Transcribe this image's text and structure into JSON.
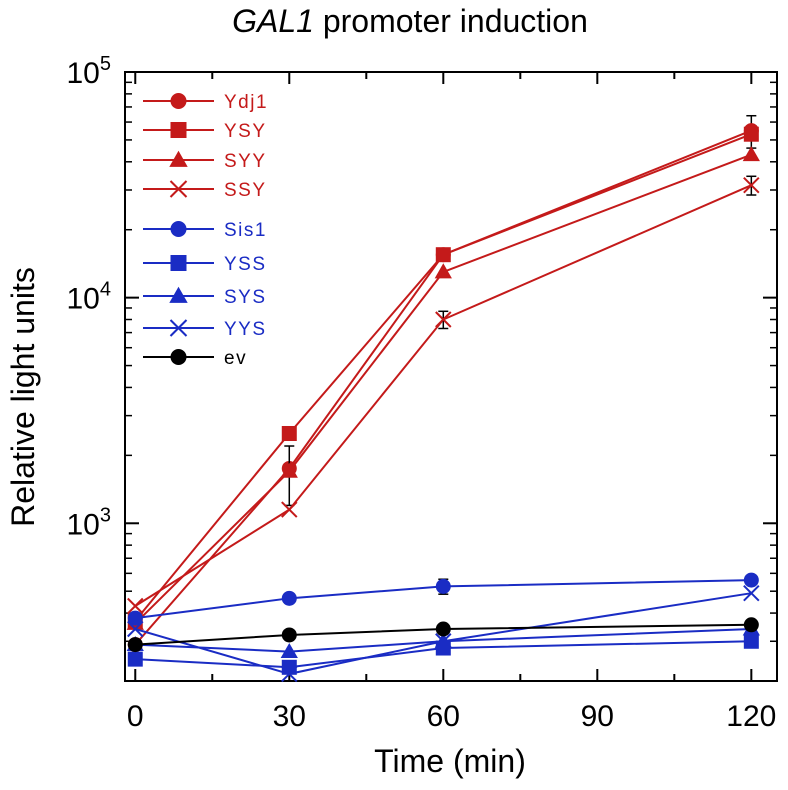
{
  "chart_data": {
    "type": "line",
    "title_italic": "GAL1",
    "title_rest": " promoter induction",
    "xlabel": "Time (min)",
    "ylabel": "Relative light units",
    "x": [
      0,
      30,
      60,
      120
    ],
    "xlim": [
      -2,
      125
    ],
    "xticks": [
      0,
      30,
      60,
      90,
      120
    ],
    "xtick_labels": [
      "0",
      "30",
      "60",
      "90",
      "120"
    ],
    "yscale": "log",
    "ylim": [
      200,
      100000
    ],
    "ytick_labels": [
      {
        "value": 1000,
        "base": "10",
        "exp": "3"
      },
      {
        "value": 10000,
        "base": "10",
        "exp": "4"
      },
      {
        "value": 100000,
        "base": "10",
        "exp": "5"
      }
    ],
    "grid": false,
    "legend_position": "top-left",
    "series": [
      {
        "name": "Ydj1",
        "color": "#c41a1a",
        "marker": "circle",
        "values": [
          290,
          1750,
          15500,
          55000
        ],
        "err": [
          0,
          0,
          0,
          9000
        ]
      },
      {
        "name": "YSY",
        "color": "#c41a1a",
        "marker": "square",
        "values": [
          370,
          2500,
          15500,
          53000
        ],
        "err": [
          0,
          0,
          0,
          0
        ]
      },
      {
        "name": "SYY",
        "color": "#c41a1a",
        "marker": "triangle",
        "values": [
          360,
          1700,
          13000,
          43000
        ],
        "err": [
          0,
          500,
          0,
          0
        ]
      },
      {
        "name": "SSY",
        "color": "#c41a1a",
        "marker": "x",
        "values": [
          430,
          1150,
          8000,
          31500
        ],
        "err": [
          0,
          0,
          700,
          3000
        ]
      },
      {
        "name": "Sis1",
        "color": "#1a2cc4",
        "marker": "circle",
        "values": [
          380,
          465,
          525,
          560
        ],
        "err": [
          0,
          0,
          40,
          0
        ]
      },
      {
        "name": "YSS",
        "color": "#1a2cc4",
        "marker": "square",
        "values": [
          250,
          230,
          280,
          300
        ],
        "err": [
          0,
          0,
          0,
          0
        ]
      },
      {
        "name": "SYS",
        "color": "#1a2cc4",
        "marker": "triangle",
        "values": [
          290,
          270,
          300,
          340
        ],
        "err": [
          0,
          0,
          0,
          0
        ]
      },
      {
        "name": "YYS",
        "color": "#1a2cc4",
        "marker": "x",
        "values": [
          340,
          215,
          300,
          490
        ],
        "err": [
          0,
          0,
          0,
          0
        ]
      },
      {
        "name": "ev",
        "color": "#000000",
        "marker": "circle",
        "values": [
          290,
          320,
          340,
          355
        ],
        "err": [
          0,
          0,
          0,
          0
        ]
      }
    ]
  }
}
